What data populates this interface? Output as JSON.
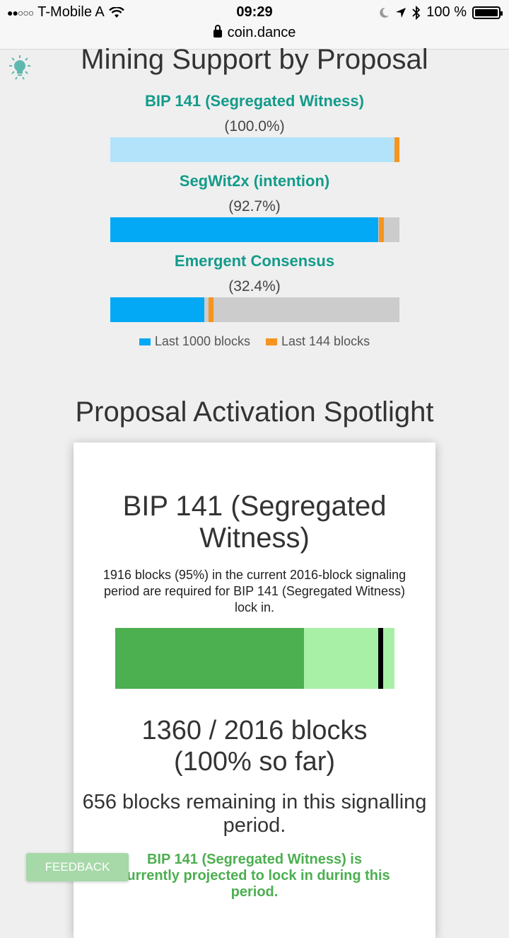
{
  "status_bar": {
    "carrier": "T-Mobile A",
    "time": "09:29",
    "battery": "100 %",
    "url": "coin.dance"
  },
  "mining": {
    "title": "Mining Support by Proposal",
    "proposals": [
      {
        "name": "BIP 141 (Segregated Witness)",
        "percent_label": "(100.0%)",
        "last_1000_fraction": 1.0,
        "last_144_fraction": 1.0,
        "fill_color": "#b3e3fb"
      },
      {
        "name": "SegWit2x (intention)",
        "percent_label": "(92.7%)",
        "last_1000_fraction": 0.927,
        "last_144_fraction": 0.93,
        "fill_color": "#03a9f4"
      },
      {
        "name": "Emergent Consensus",
        "percent_label": "(32.4%)",
        "last_1000_fraction": 0.324,
        "last_144_fraction": 0.34,
        "fill_color": "#03a9f4"
      }
    ],
    "legend": {
      "last_1000": "Last 1000 blocks",
      "last_144": "Last 144 blocks",
      "color_1000": "#03a9f4",
      "color_144": "#f7941d"
    }
  },
  "spotlight": {
    "title": "Proposal Activation Spotlight",
    "card_title": "BIP 141 (Segregated Witness)",
    "description": "1916 blocks (95%) in the current 2016-block signaling period are required for BIP 141 (Segregated Witness) lock in.",
    "progress_fraction": 0.675,
    "threshold_fraction": 0.95,
    "count_line1": "1360 / 2016 blocks",
    "count_line2": "(100% so far)",
    "remaining": "656 blocks remaining in this signalling period.",
    "projection": "BIP 141 (Segregated Witness) is currently projected to lock in during this period."
  },
  "feedback_label": "FEEDBACK",
  "icons": {
    "bulb": "lightbulb-icon",
    "lock": "lock-icon",
    "wifi": "wifi-icon",
    "bluetooth": "bluetooth-icon",
    "location": "location-arrow-icon",
    "moon": "moon-icon"
  }
}
